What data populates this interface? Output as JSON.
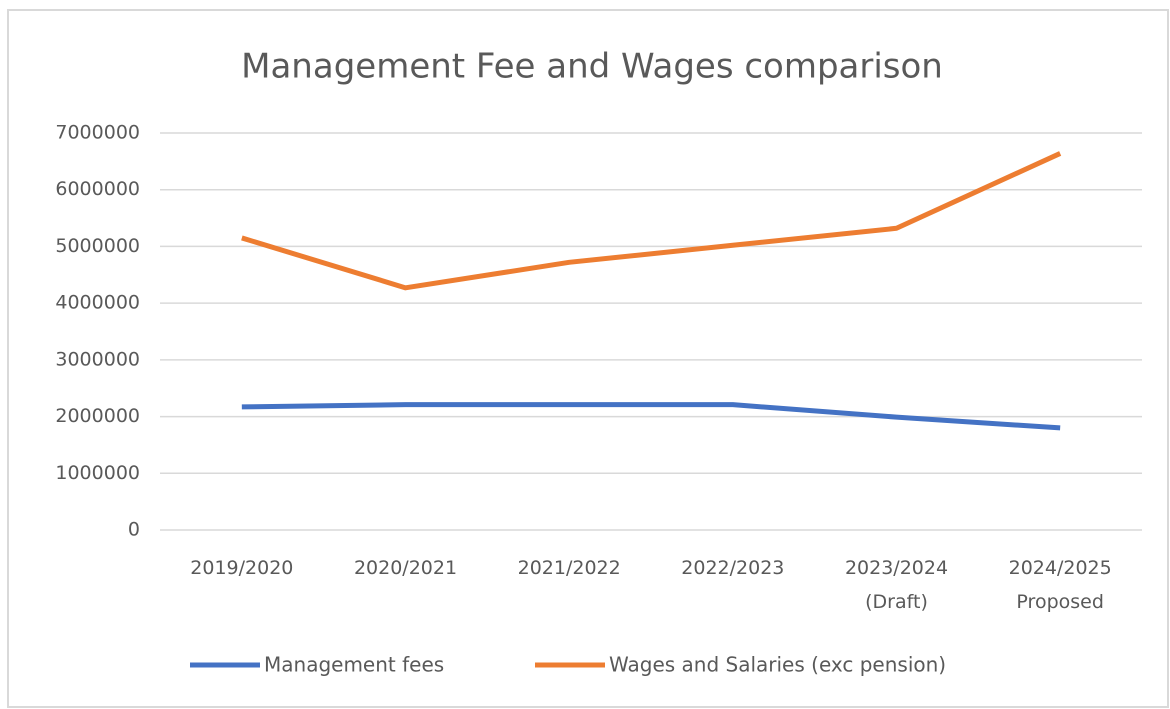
{
  "chart_data": {
    "type": "line",
    "title": "Management Fee and Wages comparison",
    "categories": [
      "2019/2020",
      "2020/2021",
      "2021/2022",
      "2022/2023",
      "2023/2024 (Draft)",
      "2024/2025 Proposed"
    ],
    "series": [
      {
        "name": "Management fees",
        "color": "#4472c4",
        "values": [
          2170000,
          2210000,
          2210000,
          2210000,
          1990000,
          1800000
        ]
      },
      {
        "name": "Wages and Salaries (exc pension)",
        "color": "#ed7d31",
        "values": [
          5150000,
          4270000,
          4720000,
          5020000,
          5320000,
          6640000
        ]
      }
    ],
    "ylim": [
      0,
      7000000
    ],
    "yticks": [
      0,
      1000000,
      2000000,
      3000000,
      4000000,
      5000000,
      6000000,
      7000000
    ],
    "grid": true,
    "legend": "bottom"
  }
}
